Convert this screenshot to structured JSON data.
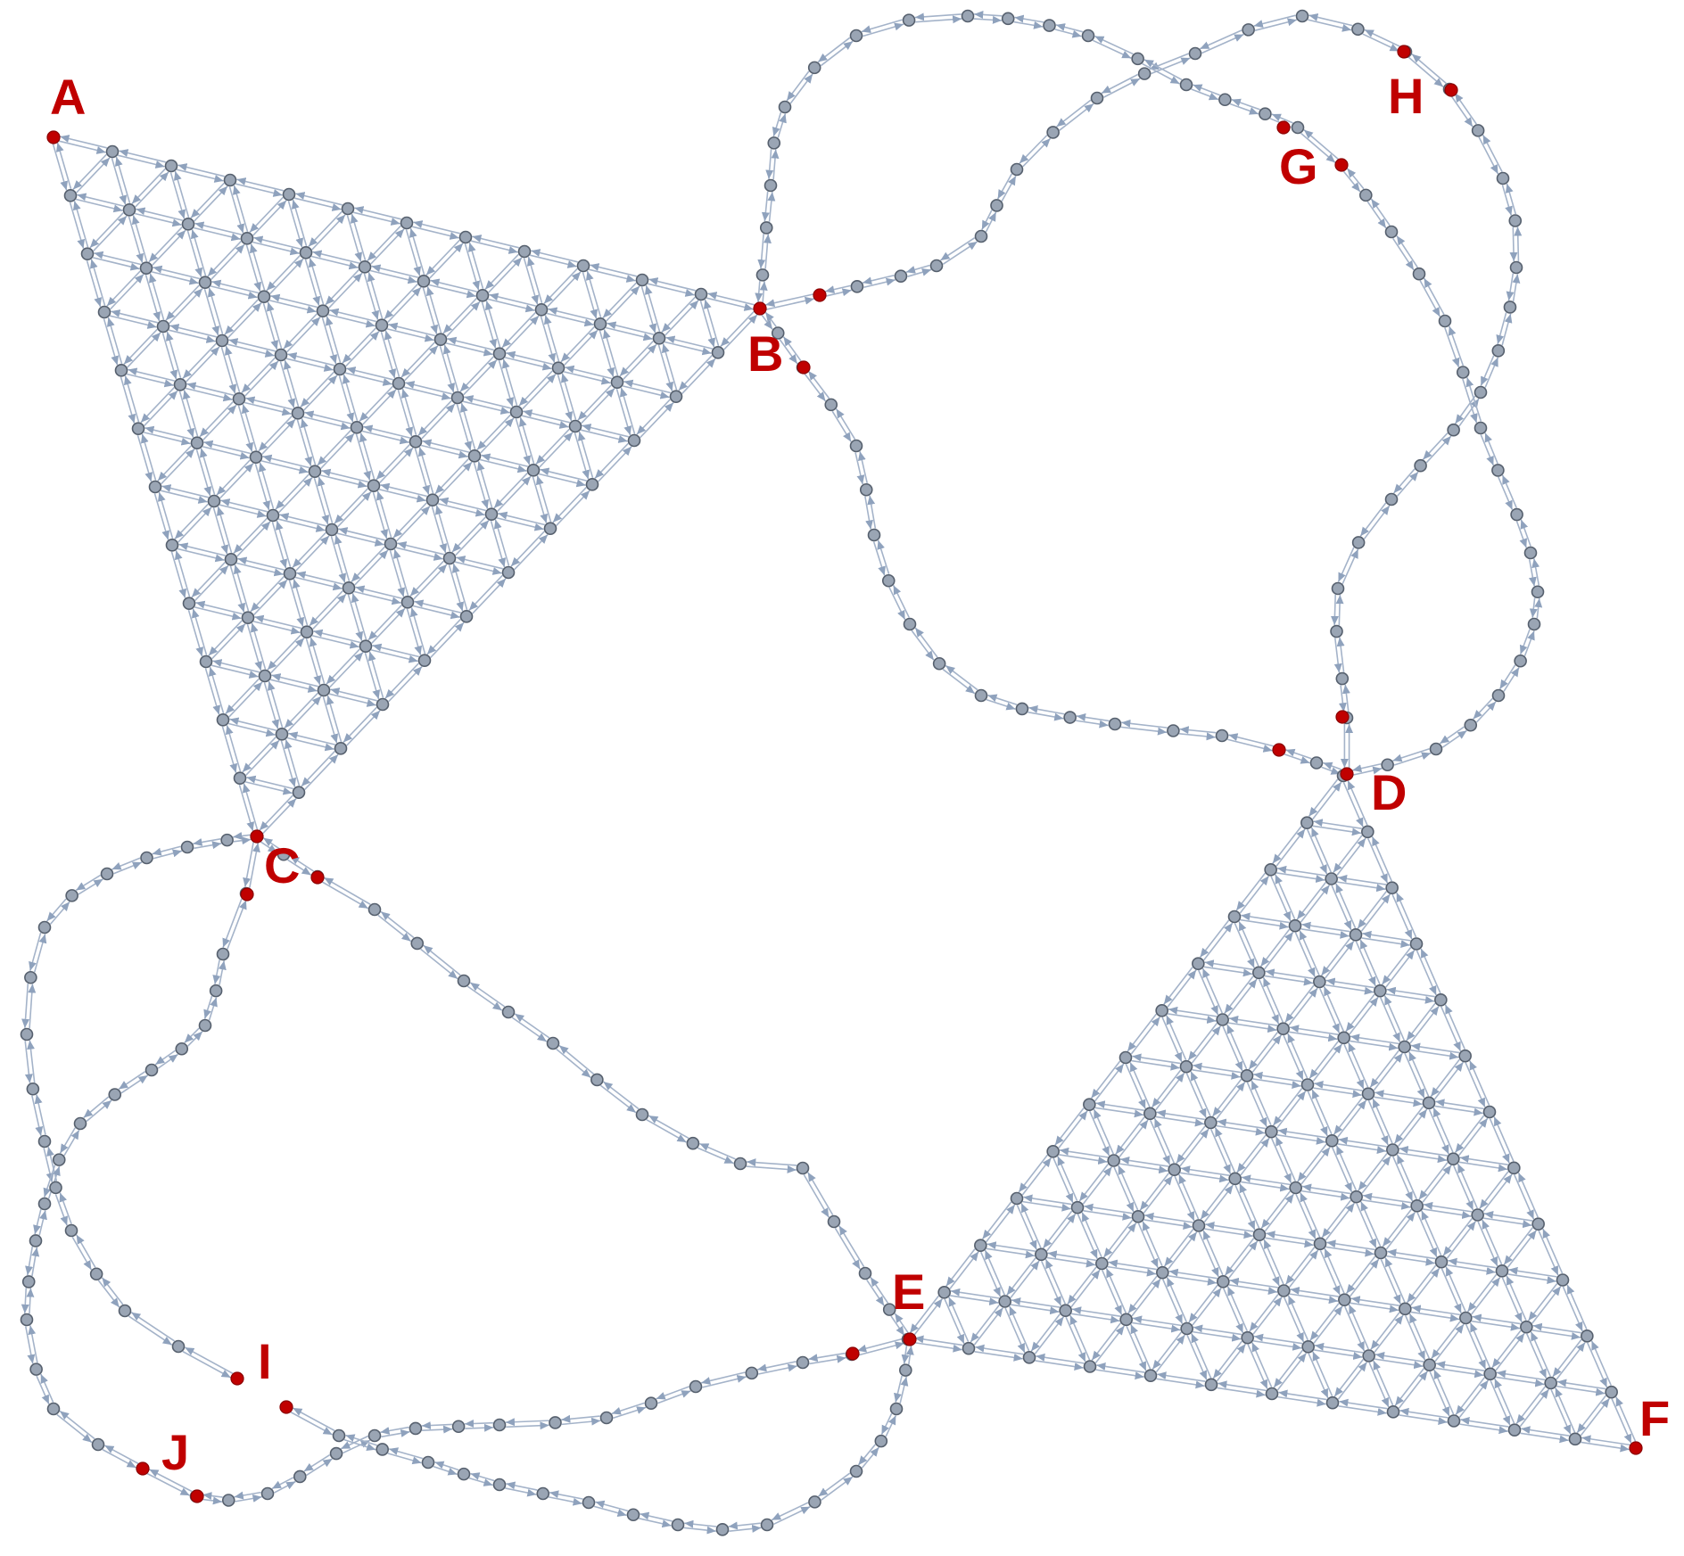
{
  "diagram": {
    "type": "directed-graph",
    "description_labels": [
      "A",
      "B",
      "C",
      "D",
      "E",
      "F",
      "G",
      "H",
      "I",
      "J"
    ],
    "colors": {
      "node": "#9aa5b4",
      "highlight": "#c00000",
      "edge": "#a4b3c9"
    },
    "labels": {
      "A": "A",
      "B": "B",
      "C": "C",
      "D": "D",
      "E": "E",
      "F": "F",
      "G": "G",
      "H": "H",
      "I": "I",
      "J": "J"
    }
  }
}
